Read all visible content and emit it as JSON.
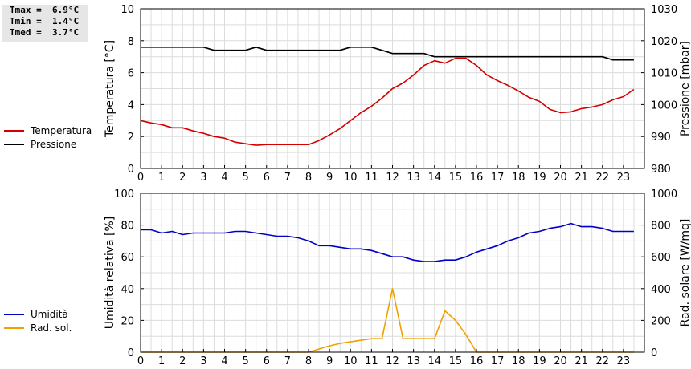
{
  "stats": {
    "tmax": "Tmax =  6.9°C",
    "tmin": "Tmin =  1.4°C",
    "tmed": "Tmed =  3.7°C"
  },
  "chart_data": [
    {
      "type": "line",
      "title": "",
      "xlabel": "",
      "xlim": [
        0,
        24
      ],
      "x_ticks": [
        0,
        1,
        2,
        3,
        4,
        5,
        6,
        7,
        8,
        9,
        10,
        11,
        12,
        13,
        14,
        15,
        16,
        17,
        18,
        19,
        20,
        21,
        22,
        23
      ],
      "ylabel": "Temperatura [°C]",
      "ylim": [
        0,
        10
      ],
      "y_ticks": [
        0,
        2,
        4,
        6,
        8,
        10
      ],
      "y2label": "Pressione [mbar]",
      "y2lim": [
        980,
        1030
      ],
      "y2_ticks": [
        980,
        990,
        1000,
        1010,
        1020,
        1030
      ],
      "grid": true,
      "legend_placement": "left",
      "series": [
        {
          "name": "Temperatura",
          "axis": "left",
          "color": "#d40000",
          "x": [
            0,
            0.5,
            1,
            1.5,
            2,
            2.5,
            3,
            3.5,
            4,
            4.5,
            5,
            5.5,
            6,
            6.5,
            7,
            7.5,
            8,
            8.5,
            9,
            9.5,
            10,
            10.5,
            11,
            11.5,
            12,
            12.5,
            13,
            13.5,
            14,
            14.5,
            15,
            15.5,
            16,
            16.5,
            17,
            17.5,
            18,
            18.5,
            19,
            19.5,
            20,
            20.5,
            21,
            21.5,
            22,
            22.5,
            23,
            23.5
          ],
          "values": [
            3.0,
            2.85,
            2.75,
            2.55,
            2.55,
            2.35,
            2.2,
            2.0,
            1.9,
            1.65,
            1.55,
            1.45,
            1.5,
            1.5,
            1.5,
            1.5,
            1.5,
            1.75,
            2.1,
            2.5,
            3.0,
            3.5,
            3.9,
            4.4,
            5.0,
            5.35,
            5.85,
            6.45,
            6.75,
            6.6,
            6.9,
            6.9,
            6.45,
            5.85,
            5.5,
            5.2,
            4.85,
            4.45,
            4.2,
            3.7,
            3.5,
            3.55,
            3.75,
            3.85,
            4.0,
            4.3,
            4.5,
            4.95
          ]
        },
        {
          "name": "Pressione",
          "axis": "right",
          "color": "#000000",
          "x": [
            0,
            0.5,
            1,
            1.5,
            2,
            2.5,
            3,
            3.5,
            4,
            4.5,
            5,
            5.5,
            6,
            6.5,
            7,
            7.5,
            8,
            8.5,
            9,
            9.5,
            10,
            10.5,
            11,
            11.5,
            12,
            12.5,
            13,
            13.5,
            14,
            14.5,
            15,
            15.5,
            16,
            16.5,
            17,
            17.5,
            18,
            18.5,
            19,
            19.5,
            20,
            20.5,
            21,
            21.5,
            22,
            22.5,
            23,
            23.5
          ],
          "values": [
            1018,
            1018,
            1018,
            1018,
            1018,
            1018,
            1018,
            1017,
            1017,
            1017,
            1017,
            1018,
            1017,
            1017,
            1017,
            1017,
            1017,
            1017,
            1017,
            1017,
            1018,
            1018,
            1018,
            1017,
            1016,
            1016,
            1016,
            1016,
            1015,
            1015,
            1015,
            1015,
            1015,
            1015,
            1015,
            1015,
            1015,
            1015,
            1015,
            1015,
            1015,
            1015,
            1015,
            1015,
            1015,
            1014,
            1014,
            1014
          ]
        }
      ]
    },
    {
      "type": "line",
      "title": "",
      "xlabel": "",
      "xlim": [
        0,
        24
      ],
      "x_ticks": [
        0,
        1,
        2,
        3,
        4,
        5,
        6,
        7,
        8,
        9,
        10,
        11,
        12,
        13,
        14,
        15,
        16,
        17,
        18,
        19,
        20,
        21,
        22,
        23
      ],
      "ylabel": "Umidità relativa [%]",
      "ylim": [
        0,
        100
      ],
      "y_ticks": [
        0,
        20,
        40,
        60,
        80,
        100
      ],
      "y2label": "Rad. solare [W/mq]",
      "y2lim": [
        0,
        1000
      ],
      "y2_ticks": [
        0,
        200,
        400,
        600,
        800,
        1000
      ],
      "grid": true,
      "legend_placement": "left",
      "series": [
        {
          "name": "Umidità",
          "axis": "left",
          "color": "#0000c8",
          "x": [
            0,
            0.5,
            1,
            1.5,
            2,
            2.5,
            3,
            3.5,
            4,
            4.5,
            5,
            5.5,
            6,
            6.5,
            7,
            7.5,
            8,
            8.5,
            9,
            9.5,
            10,
            10.5,
            11,
            11.5,
            12,
            12.5,
            13,
            13.5,
            14,
            14.5,
            15,
            15.5,
            16,
            16.5,
            17,
            17.5,
            18,
            18.5,
            19,
            19.5,
            20,
            20.5,
            21,
            21.5,
            22,
            22.5,
            23,
            23.5
          ],
          "values": [
            77,
            77,
            75,
            76,
            74,
            75,
            75,
            75,
            75,
            76,
            76,
            75,
            74,
            73,
            73,
            72,
            70,
            67,
            67,
            66,
            65,
            65,
            64,
            62,
            60,
            60,
            58,
            57,
            57,
            58,
            58,
            60,
            63,
            65,
            67,
            70,
            72,
            75,
            76,
            78,
            79,
            81,
            79,
            79,
            78,
            76,
            76,
            76
          ]
        },
        {
          "name": "Rad. sol.",
          "axis": "right",
          "color": "#f0a000",
          "x": [
            0,
            1,
            2,
            3,
            4,
            5,
            6,
            7,
            8,
            8.5,
            9,
            9.5,
            10,
            10.5,
            11,
            11.5,
            12,
            12.5,
            13,
            13.5,
            14,
            14.5,
            15,
            15.5,
            16,
            17,
            18,
            19,
            20,
            21,
            22,
            23,
            23.5
          ],
          "values": [
            0,
            0,
            0,
            0,
            0,
            0,
            0,
            0,
            0,
            20,
            40,
            55,
            65,
            75,
            85,
            85,
            400,
            85,
            85,
            85,
            85,
            260,
            200,
            110,
            0,
            0,
            0,
            0,
            0,
            0,
            0,
            0,
            0
          ]
        }
      ]
    }
  ]
}
